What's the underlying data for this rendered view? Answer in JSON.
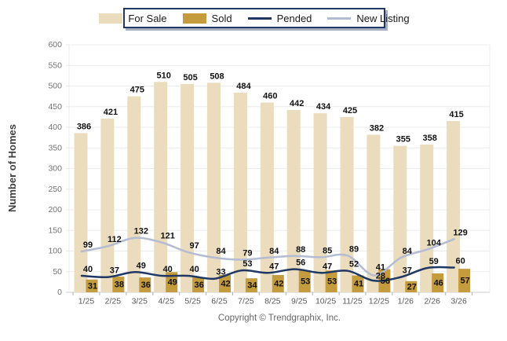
{
  "footer": "Copyright © Trendgraphix, Inc.",
  "colors": {
    "for_sale": "#EADCBD",
    "sold": "#C49B3D",
    "pended": "#1F3864",
    "new_listing": "#B3BCD2",
    "grid": "#EBEBEB",
    "axis": "#CCCCCC",
    "tick_label": "#737373",
    "x_label": "#595959",
    "data_label": "#111111"
  },
  "legend": {
    "items": [
      {
        "label": "For Sale",
        "type": "box",
        "color": "#EADCBD"
      },
      {
        "label": "Sold",
        "type": "box",
        "color": "#C49B3D"
      },
      {
        "label": "Pended",
        "type": "line",
        "color": "#1F3864"
      },
      {
        "label": "New Listing",
        "type": "line",
        "color": "#B3BCD2"
      }
    ]
  },
  "chart_data": {
    "type": "bar",
    "title": "",
    "xlabel": "",
    "ylabel": "Number of Homes",
    "ylim": [
      0,
      600
    ],
    "ytick_step": 50,
    "grid": true,
    "legend_position": "top",
    "categories": [
      "1/25",
      "2/25",
      "3/25",
      "4/25",
      "5/25",
      "6/25",
      "7/25",
      "8/25",
      "9/25",
      "10/25",
      "11/25",
      "12/25",
      "1/26",
      "2/26",
      "3/26"
    ],
    "series": [
      {
        "name": "For Sale",
        "type": "bar",
        "color": "#EADCBD",
        "values": [
          386,
          421,
          475,
          510,
          505,
          508,
          484,
          460,
          442,
          434,
          425,
          382,
          355,
          358,
          415
        ]
      },
      {
        "name": "Sold",
        "type": "bar",
        "color": "#C49B3D",
        "values": [
          31,
          38,
          36,
          49,
          36,
          42,
          34,
          42,
          53,
          53,
          41,
          56,
          27,
          46,
          57
        ]
      },
      {
        "name": "Pended",
        "type": "line",
        "color": "#1F3864",
        "values": [
          40,
          37,
          49,
          40,
          40,
          33,
          53,
          47,
          56,
          47,
          52,
          28,
          37,
          59,
          60
        ]
      },
      {
        "name": "New Listing",
        "type": "line",
        "color": "#B3BCD2",
        "values": [
          99,
          112,
          132,
          121,
          97,
          84,
          79,
          84,
          88,
          85,
          89,
          41,
          84,
          104,
          129
        ]
      }
    ]
  }
}
